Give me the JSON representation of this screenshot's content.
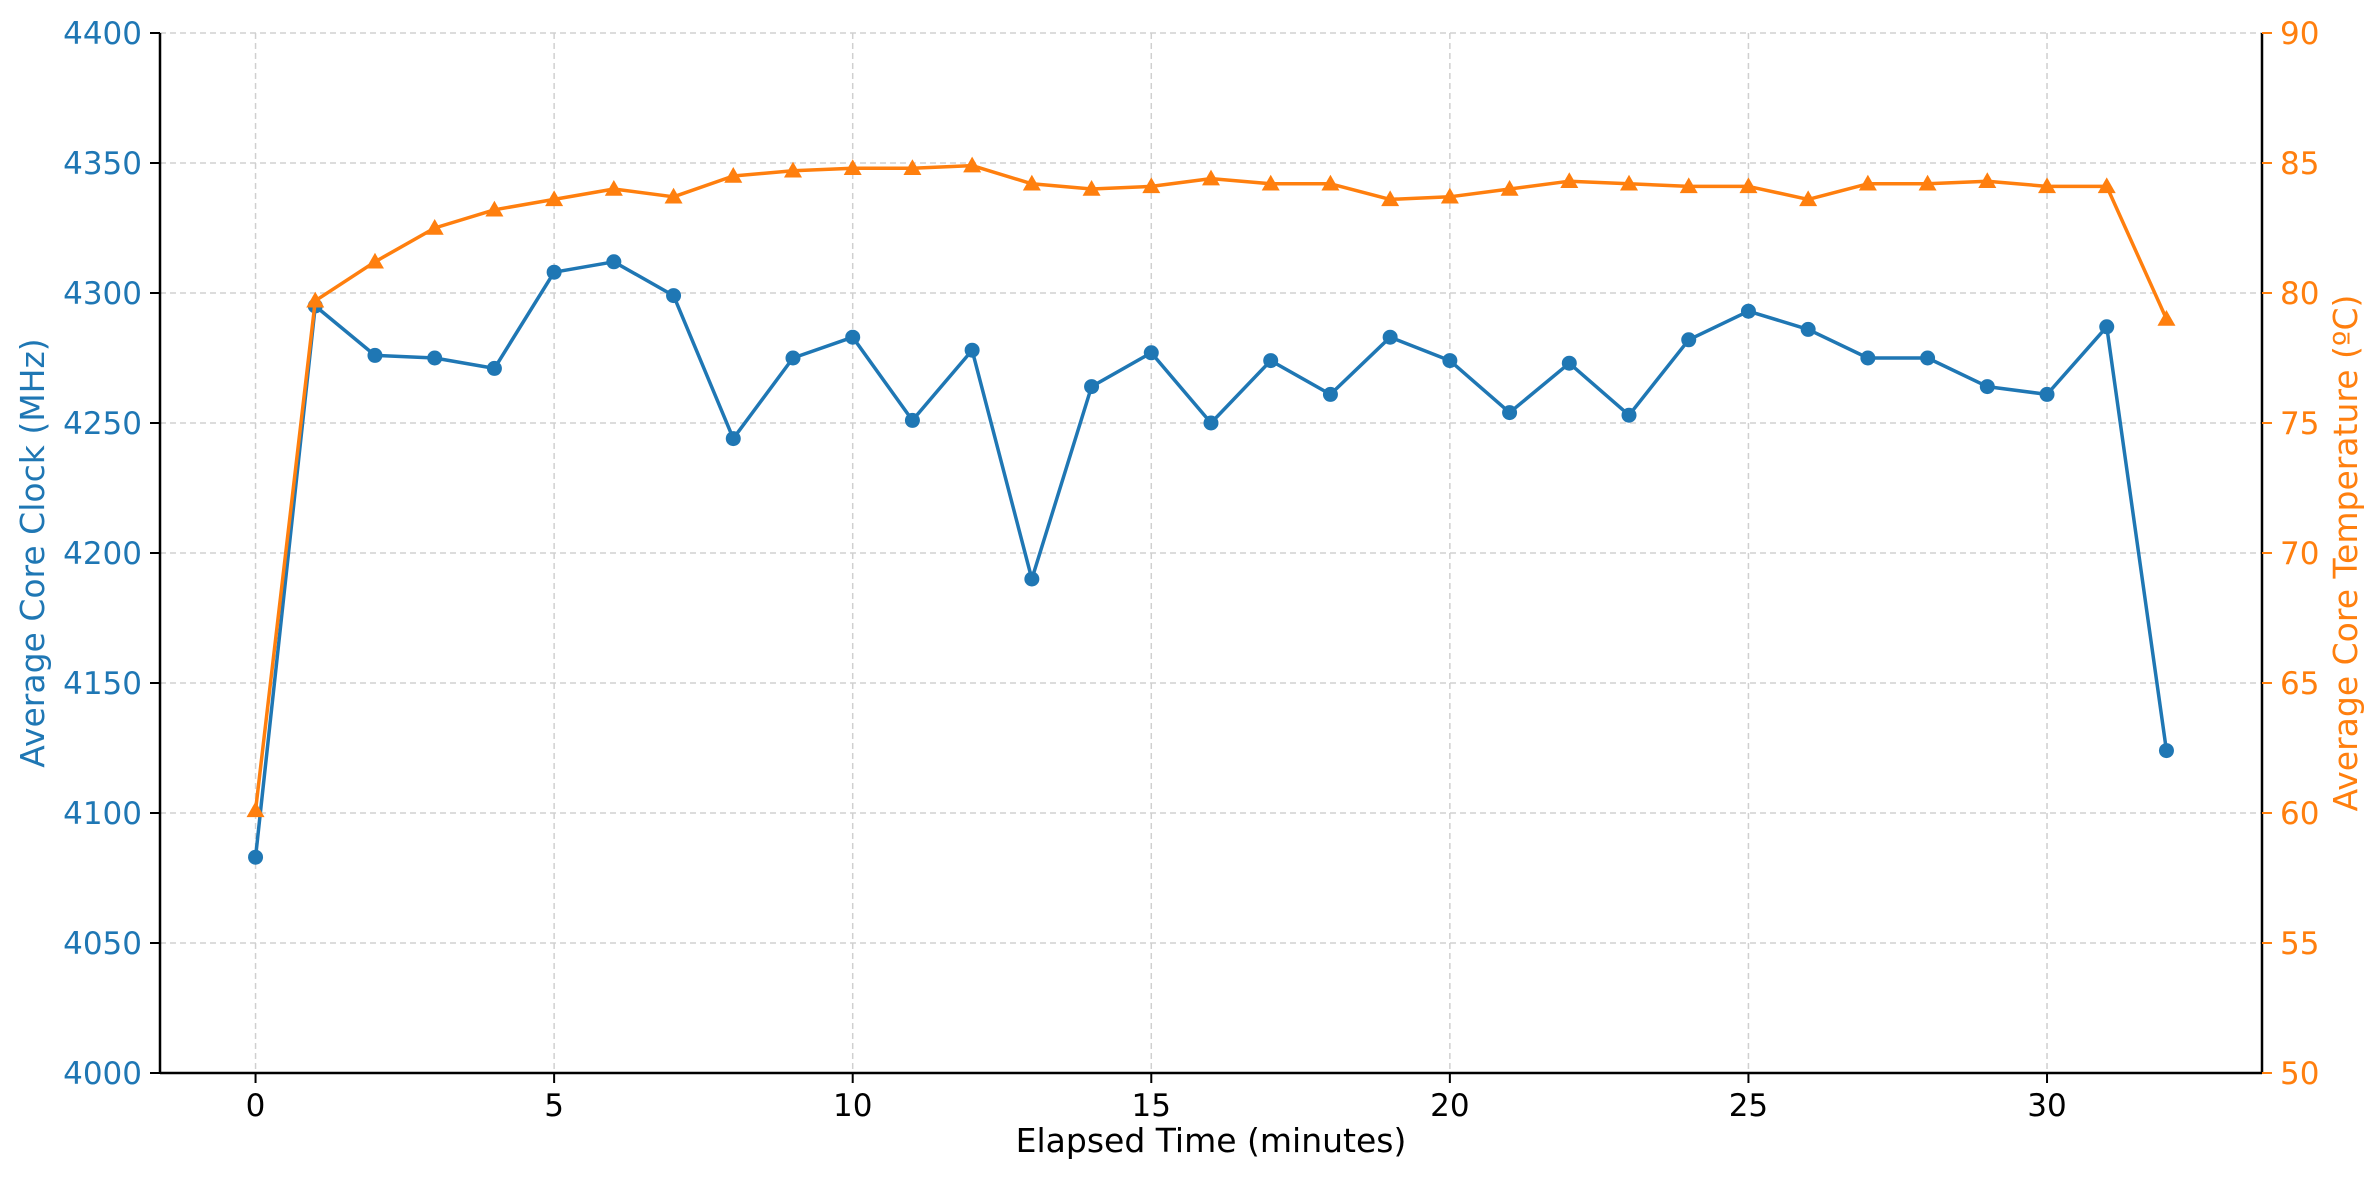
{
  "colors": {
    "left_series": "#1f77b4",
    "right_series": "#ff7f0e",
    "axis": "#000000",
    "grid": "#d0d0d0"
  },
  "chart_data": {
    "type": "line",
    "xlabel": "Elapsed Time (minutes)",
    "ylabel_left": "Average Core Clock (MHz)",
    "ylabel_right": "Average Core Temperature (ºC)",
    "xlim": [
      -1.6,
      33.6
    ],
    "xticks": [
      0,
      5,
      10,
      15,
      20,
      25,
      30
    ],
    "ylim_left": [
      4000,
      4400
    ],
    "yticks_left": [
      4000,
      4050,
      4100,
      4150,
      4200,
      4250,
      4300,
      4350,
      4400
    ],
    "ylim_right": [
      50,
      90
    ],
    "yticks_right": [
      50,
      55,
      60,
      65,
      70,
      75,
      80,
      85,
      90
    ],
    "grid": true,
    "legend": "none",
    "x": [
      0,
      1,
      2,
      3,
      4,
      5,
      6,
      7,
      8,
      9,
      10,
      11,
      12,
      13,
      14,
      15,
      16,
      17,
      18,
      19,
      20,
      21,
      22,
      23,
      24,
      25,
      26,
      27,
      28,
      29,
      30,
      31,
      32
    ],
    "series": [
      {
        "axis": "left",
        "marker": "circle",
        "values": [
          4083,
          4295,
          4276,
          4275,
          4271,
          4308,
          4312,
          4299,
          4244,
          4275,
          4283,
          4251,
          4278,
          4190,
          4264,
          4277,
          4250,
          4274,
          4261,
          4283,
          4274,
          4254,
          4273,
          4253,
          4282,
          4293,
          4286,
          4275,
          4275,
          4264,
          4261,
          4287,
          4124
        ]
      },
      {
        "axis": "right",
        "marker": "triangle",
        "values": [
          60.1,
          79.7,
          81.2,
          82.5,
          83.2,
          83.6,
          84.0,
          83.7,
          84.5,
          84.7,
          84.8,
          84.8,
          84.9,
          84.2,
          84.0,
          84.1,
          84.4,
          84.2,
          84.2,
          83.6,
          83.7,
          84.0,
          84.3,
          84.2,
          84.1,
          84.1,
          83.6,
          84.2,
          84.2,
          84.3,
          84.1,
          84.1,
          79.0
        ]
      }
    ]
  }
}
